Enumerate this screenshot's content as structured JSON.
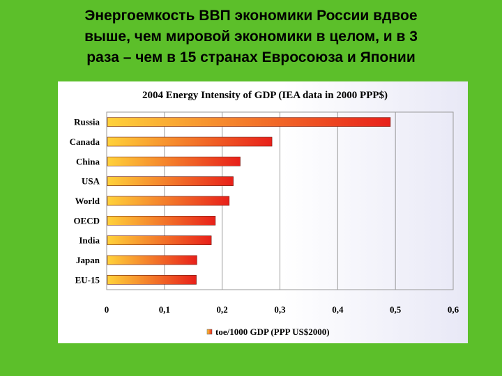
{
  "slide": {
    "title_lines": [
      "Энергоемкость ВВП экономики России вдвое",
      "выше, чем мировой экономики в целом, и в 3",
      "раза – чем в 15 странах Евросоюза и Японии"
    ]
  },
  "chart_data": {
    "type": "bar",
    "orientation": "horizontal",
    "title": "2004 Energy Intensity of GDP (IEA data in 2000 PPP$)",
    "categories": [
      "Russia",
      "Canada",
      "China",
      "USA",
      "World",
      "OECD",
      "India",
      "Japan",
      "EU-15"
    ],
    "series": [
      {
        "name": "toe/1000 GDP (PPP US$2000)",
        "values": [
          0.49,
          0.285,
          0.23,
          0.218,
          0.211,
          0.187,
          0.18,
          0.155,
          0.154
        ]
      }
    ],
    "xlim": [
      0,
      0.6
    ],
    "x_ticks": [
      "0",
      "0,1",
      "0,2",
      "0,3",
      "0,4",
      "0,5",
      "0,6"
    ],
    "grid": "vertical",
    "legend": "bottom",
    "bar_gradient": [
      "#ffd23a",
      "#e8201a"
    ]
  }
}
